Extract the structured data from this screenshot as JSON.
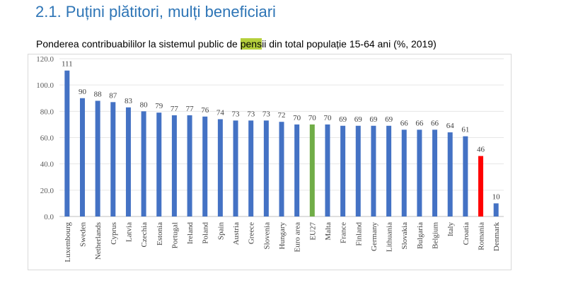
{
  "heading": "2.1. Puțini plătitori, mulți beneficiari",
  "subtitle": {
    "before": "Ponderea contribuabililor la sistemul public de ",
    "highlight": "pens",
    "after": "ii din total populație 15-64 ani (%, 2019)"
  },
  "colors": {
    "bar": "#4472c4",
    "eu27": "#70ad47",
    "romania": "#ff0000",
    "heading": "#2e75b6",
    "highlight": "#b5cf3c"
  },
  "chart_data": {
    "type": "bar",
    "title": "Ponderea contribuabililor la sistemul public de pensii din total populație 15-64 ani (%, 2019)",
    "xlabel": "",
    "ylabel": "",
    "ylim": [
      0,
      120
    ],
    "yticks": [
      "0.0",
      "20.0",
      "40.0",
      "60.0",
      "80.0",
      "100.0",
      "120.0"
    ],
    "grid": true,
    "categories": [
      "Luxembourg",
      "Sweden",
      "Netherlands",
      "Cyprus",
      "Latvia",
      "Czechia",
      "Estonia",
      "Portugal",
      "Ireland",
      "Poland",
      "Spain",
      "Austria",
      "Greece",
      "Slovenia",
      "Hungary",
      "Euro area",
      "EU27",
      "Malta",
      "France",
      "Finland",
      "Germany",
      "Lithuania",
      "Slovakia",
      "Bulgaria",
      "Belgium",
      "Italy",
      "Croatia",
      "Romania",
      "Denmark"
    ],
    "values": [
      111,
      90,
      88,
      87,
      83,
      80,
      79,
      77,
      77,
      76,
      74,
      73,
      73,
      73,
      72,
      70,
      70,
      70,
      69,
      69,
      69,
      69,
      66,
      66,
      66,
      64,
      61,
      46,
      10
    ],
    "labels": [
      "111",
      "90",
      "88",
      "87",
      "83",
      "80",
      "79",
      "77",
      "77",
      "76",
      "74",
      "73",
      "73",
      "73",
      "72",
      "70",
      "70",
      "70",
      "69",
      "69",
      "69",
      "69",
      "66",
      "66",
      "66",
      "64",
      "61",
      "46",
      "10"
    ],
    "highlight_colors": {
      "EU27": "eu27",
      "Romania": "romania"
    }
  }
}
